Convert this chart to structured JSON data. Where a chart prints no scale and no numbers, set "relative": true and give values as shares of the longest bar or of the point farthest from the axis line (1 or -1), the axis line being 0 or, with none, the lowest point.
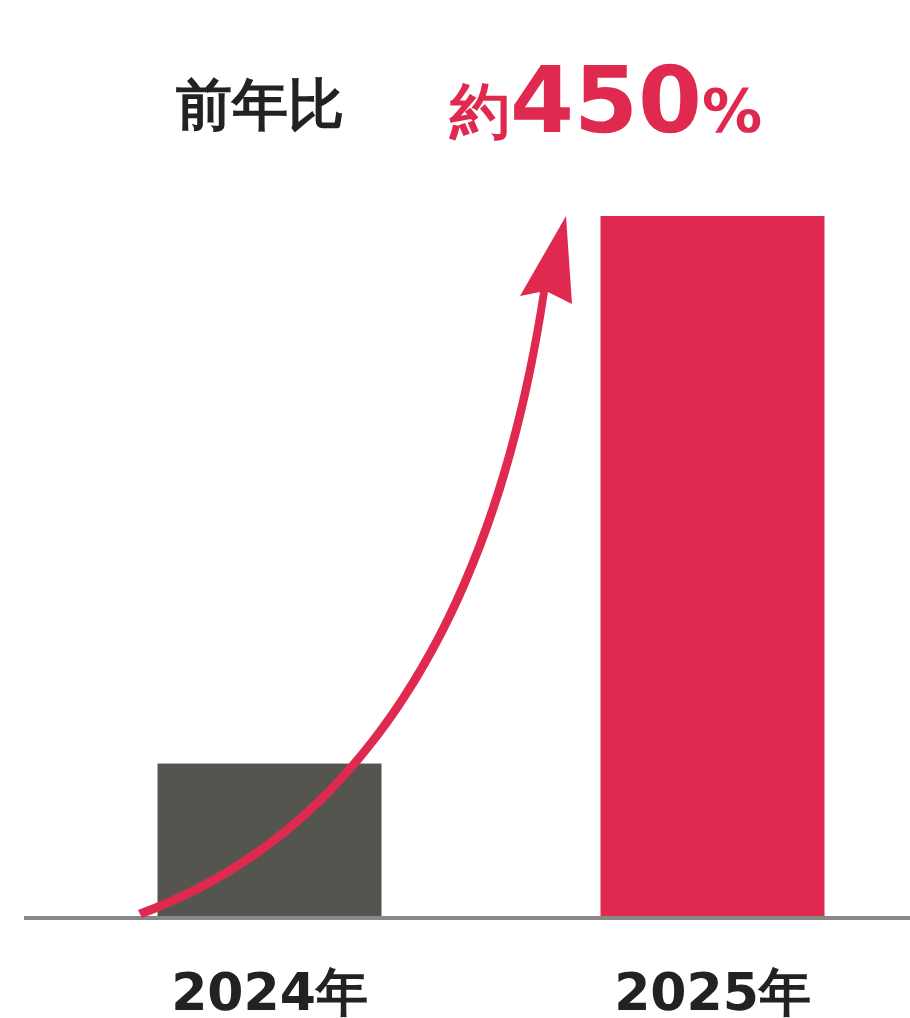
{
  "chart_data": {
    "type": "bar",
    "title": "前年比",
    "annotations": [
      "約450%"
    ],
    "categories": [
      "2024年",
      "2025年"
    ],
    "values": [
      0.22,
      1
    ],
    "colors": [
      "#555550",
      "#e0294f"
    ],
    "relative": true
  }
}
